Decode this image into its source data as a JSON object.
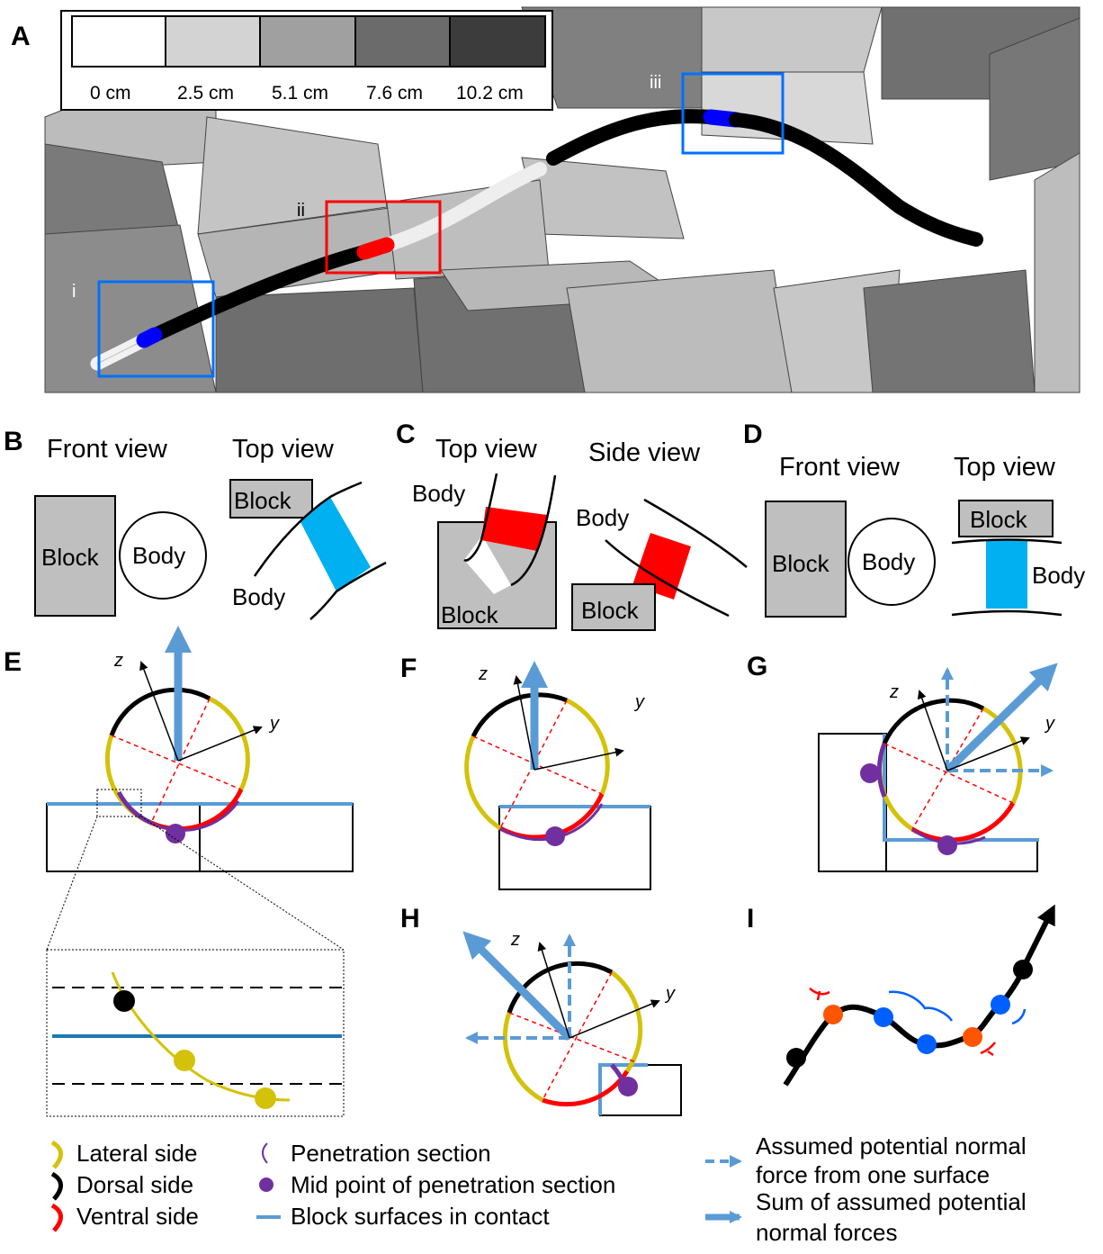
{
  "panels": {
    "A": {
      "letter": "A",
      "scale_bar": {
        "labels": [
          "0 cm",
          "2.5 cm",
          "5.1 cm",
          "7.6 cm",
          "10.2 cm"
        ],
        "colors": [
          "#ffffff",
          "#d3d3d3",
          "#a0a0a0",
          "#6b6b6b",
          "#3c3c3c"
        ]
      },
      "markers": {
        "i": "i",
        "ii": "ii",
        "iii": "iii"
      }
    },
    "B": {
      "letter": "B",
      "front_title": "Front view",
      "top_title": "Top view",
      "block": "Block",
      "body": "Body"
    },
    "C": {
      "letter": "C",
      "top_title": "Top view",
      "side_title": "Side view",
      "block": "Block",
      "body": "Body"
    },
    "D": {
      "letter": "D",
      "front_title": "Front view",
      "top_title": "Top view",
      "block": "Block",
      "body": "Body"
    },
    "E": {
      "letter": "E",
      "z": "z",
      "y": "y"
    },
    "F": {
      "letter": "F",
      "z": "z",
      "y": "y"
    },
    "G": {
      "letter": "G",
      "z": "z",
      "y": "y"
    },
    "H": {
      "letter": "H",
      "z": "z",
      "y": "y"
    },
    "I": {
      "letter": "I"
    }
  },
  "legend": {
    "lateral": "Lateral side",
    "dorsal": "Dorsal side",
    "ventral": "Ventral side",
    "penetration": "Penetration section",
    "midpoint": "Mid point of penetration section",
    "block_surfaces": "Block surfaces in contact",
    "assumed_force_line1": "Assumed potential normal",
    "assumed_force_line2": "force from one surface",
    "sum_force_line1": "Sum of assumed potential",
    "sum_force_line2": "normal forces"
  },
  "colors": {
    "lateral": "#d4c20a",
    "dorsal": "#000000",
    "ventral": "#ff0000",
    "penetration": "#7030a0",
    "force": "#5b9bd5",
    "highlight_blue": "#0070ff",
    "highlight_red": "#ff0000"
  }
}
